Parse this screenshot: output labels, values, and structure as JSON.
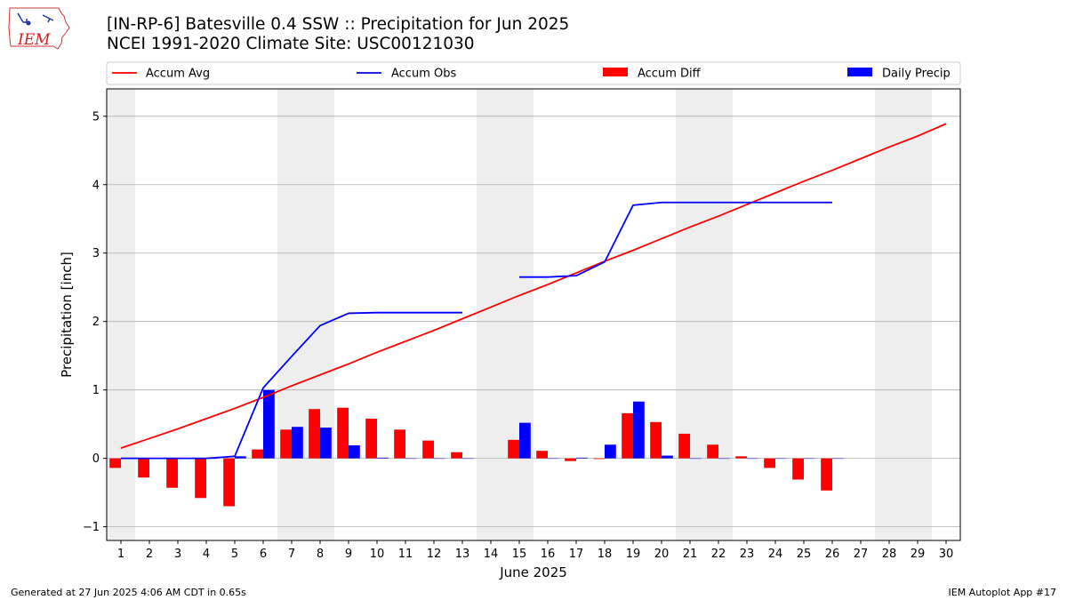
{
  "header": {
    "title_line1": "[IN-RP-6] Batesville 0.4 SSW :: Precipitation for Jun 2025",
    "title_line2": "NCEI 1991-2020 Climate Site: USC00121030"
  },
  "logo": {
    "text": "IEM"
  },
  "footer": {
    "left": "Generated at 27 Jun 2025 4:06 AM CDT in 0.65s",
    "right": "IEM Autoplot App #17"
  },
  "colors": {
    "accum_avg": "#ff0000",
    "accum_obs": "#0000ff",
    "accum_diff": "#ff0000",
    "daily_precip": "#0000ff",
    "weekend_band": "#eeeeee",
    "grid": "#b0b0b0"
  },
  "chart_data": {
    "type": "bar",
    "xlabel": "June 2025",
    "ylabel": "Precipitation [inch]",
    "ylim": [
      -1.2,
      5.4
    ],
    "yticks": [
      -1,
      0,
      1,
      2,
      3,
      4,
      5
    ],
    "grid": "horizontal",
    "legend_position": "top",
    "x": [
      1,
      2,
      3,
      4,
      5,
      6,
      7,
      8,
      9,
      10,
      11,
      12,
      13,
      14,
      15,
      16,
      17,
      18,
      19,
      20,
      21,
      22,
      23,
      24,
      25,
      26,
      27,
      28,
      29,
      30
    ],
    "weekend_days": [
      1,
      7,
      8,
      14,
      15,
      21,
      22,
      28,
      29
    ],
    "series": [
      {
        "name": "Accum Avg",
        "kind": "line",
        "values": [
          0.15,
          0.29,
          0.43,
          0.58,
          0.73,
          0.89,
          1.06,
          1.22,
          1.38,
          1.55,
          1.71,
          1.87,
          2.04,
          2.21,
          2.38,
          2.54,
          2.71,
          2.88,
          3.04,
          3.21,
          3.38,
          3.54,
          3.71,
          3.88,
          4.05,
          4.21,
          4.38,
          4.55,
          4.71,
          4.89
        ]
      },
      {
        "name": "Accum Obs",
        "kind": "line",
        "values": [
          0.0,
          0.0,
          0.0,
          0.0,
          0.03,
          1.03,
          1.49,
          1.94,
          2.12,
          2.13,
          2.13,
          2.13,
          2.13,
          null,
          2.65,
          2.65,
          2.67,
          2.87,
          3.7,
          3.74,
          3.74,
          3.74,
          3.74,
          3.74,
          3.74,
          3.74,
          null,
          null,
          null,
          null
        ]
      },
      {
        "name": "Accum Diff",
        "kind": "bar",
        "values": [
          -0.14,
          -0.28,
          -0.43,
          -0.58,
          -0.7,
          0.13,
          0.42,
          0.72,
          0.74,
          0.58,
          0.42,
          0.26,
          0.09,
          null,
          0.27,
          0.11,
          -0.04,
          -0.01,
          0.66,
          0.53,
          0.36,
          0.2,
          0.03,
          -0.14,
          -0.31,
          -0.47,
          null,
          null,
          null,
          null
        ]
      },
      {
        "name": "Daily Precip",
        "kind": "bar",
        "values": [
          0.0,
          0.0,
          0.0,
          0.0,
          0.03,
          1.0,
          0.46,
          0.45,
          0.19,
          0.01,
          0.0,
          0.0,
          0.0,
          null,
          0.52,
          0.0,
          0.01,
          0.2,
          0.83,
          0.04,
          0.0,
          0.0,
          0.0,
          0.0,
          0.0,
          0.0,
          null,
          null,
          null,
          null
        ]
      }
    ]
  }
}
